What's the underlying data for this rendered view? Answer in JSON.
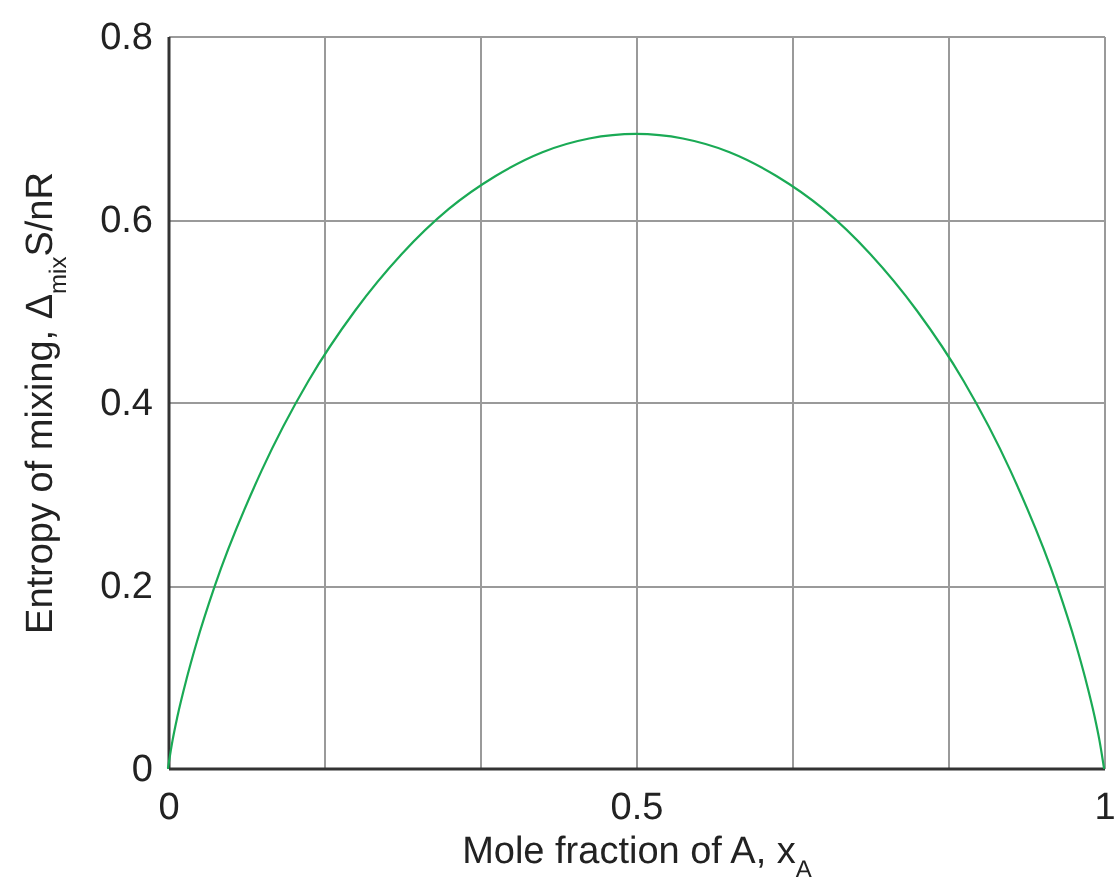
{
  "chart_data": {
    "type": "line",
    "xlabel": "Mole fraction of A, x$_{A}$",
    "ylabel": "Entropy of mixing, Δ$_{mix}$S/nR",
    "x": [
      0,
      0.005,
      0.01,
      0.02,
      0.03,
      0.05,
      0.1,
      0.15,
      0.2,
      0.25,
      0.3,
      0.35,
      0.4,
      0.45,
      0.5,
      0.55,
      0.6,
      0.65,
      0.7,
      0.75,
      0.8,
      0.85,
      0.9,
      0.95,
      0.97,
      0.98,
      0.99,
      0.995,
      1
    ],
    "values": [
      0,
      0.031,
      0.056,
      0.098,
      0.135,
      0.199,
      0.325,
      0.423,
      0.5,
      0.562,
      0.611,
      0.647,
      0.673,
      0.688,
      0.693,
      0.688,
      0.673,
      0.647,
      0.611,
      0.562,
      0.5,
      0.423,
      0.325,
      0.199,
      0.135,
      0.098,
      0.056,
      0.031,
      0
    ],
    "color": "#1aaa55",
    "xlim": [
      0,
      1
    ],
    "ylim": [
      0,
      0.8
    ],
    "xticks": [
      0,
      {
        "value": 0.167,
        "label": null
      },
      {
        "value": 0.333,
        "label": null
      },
      0.5,
      {
        "value": 0.667,
        "label": null
      },
      {
        "value": 0.833,
        "label": null
      },
      1
    ],
    "yticks": [
      0,
      0.2,
      0.4,
      0.6,
      0.8
    ],
    "grid": true
  }
}
